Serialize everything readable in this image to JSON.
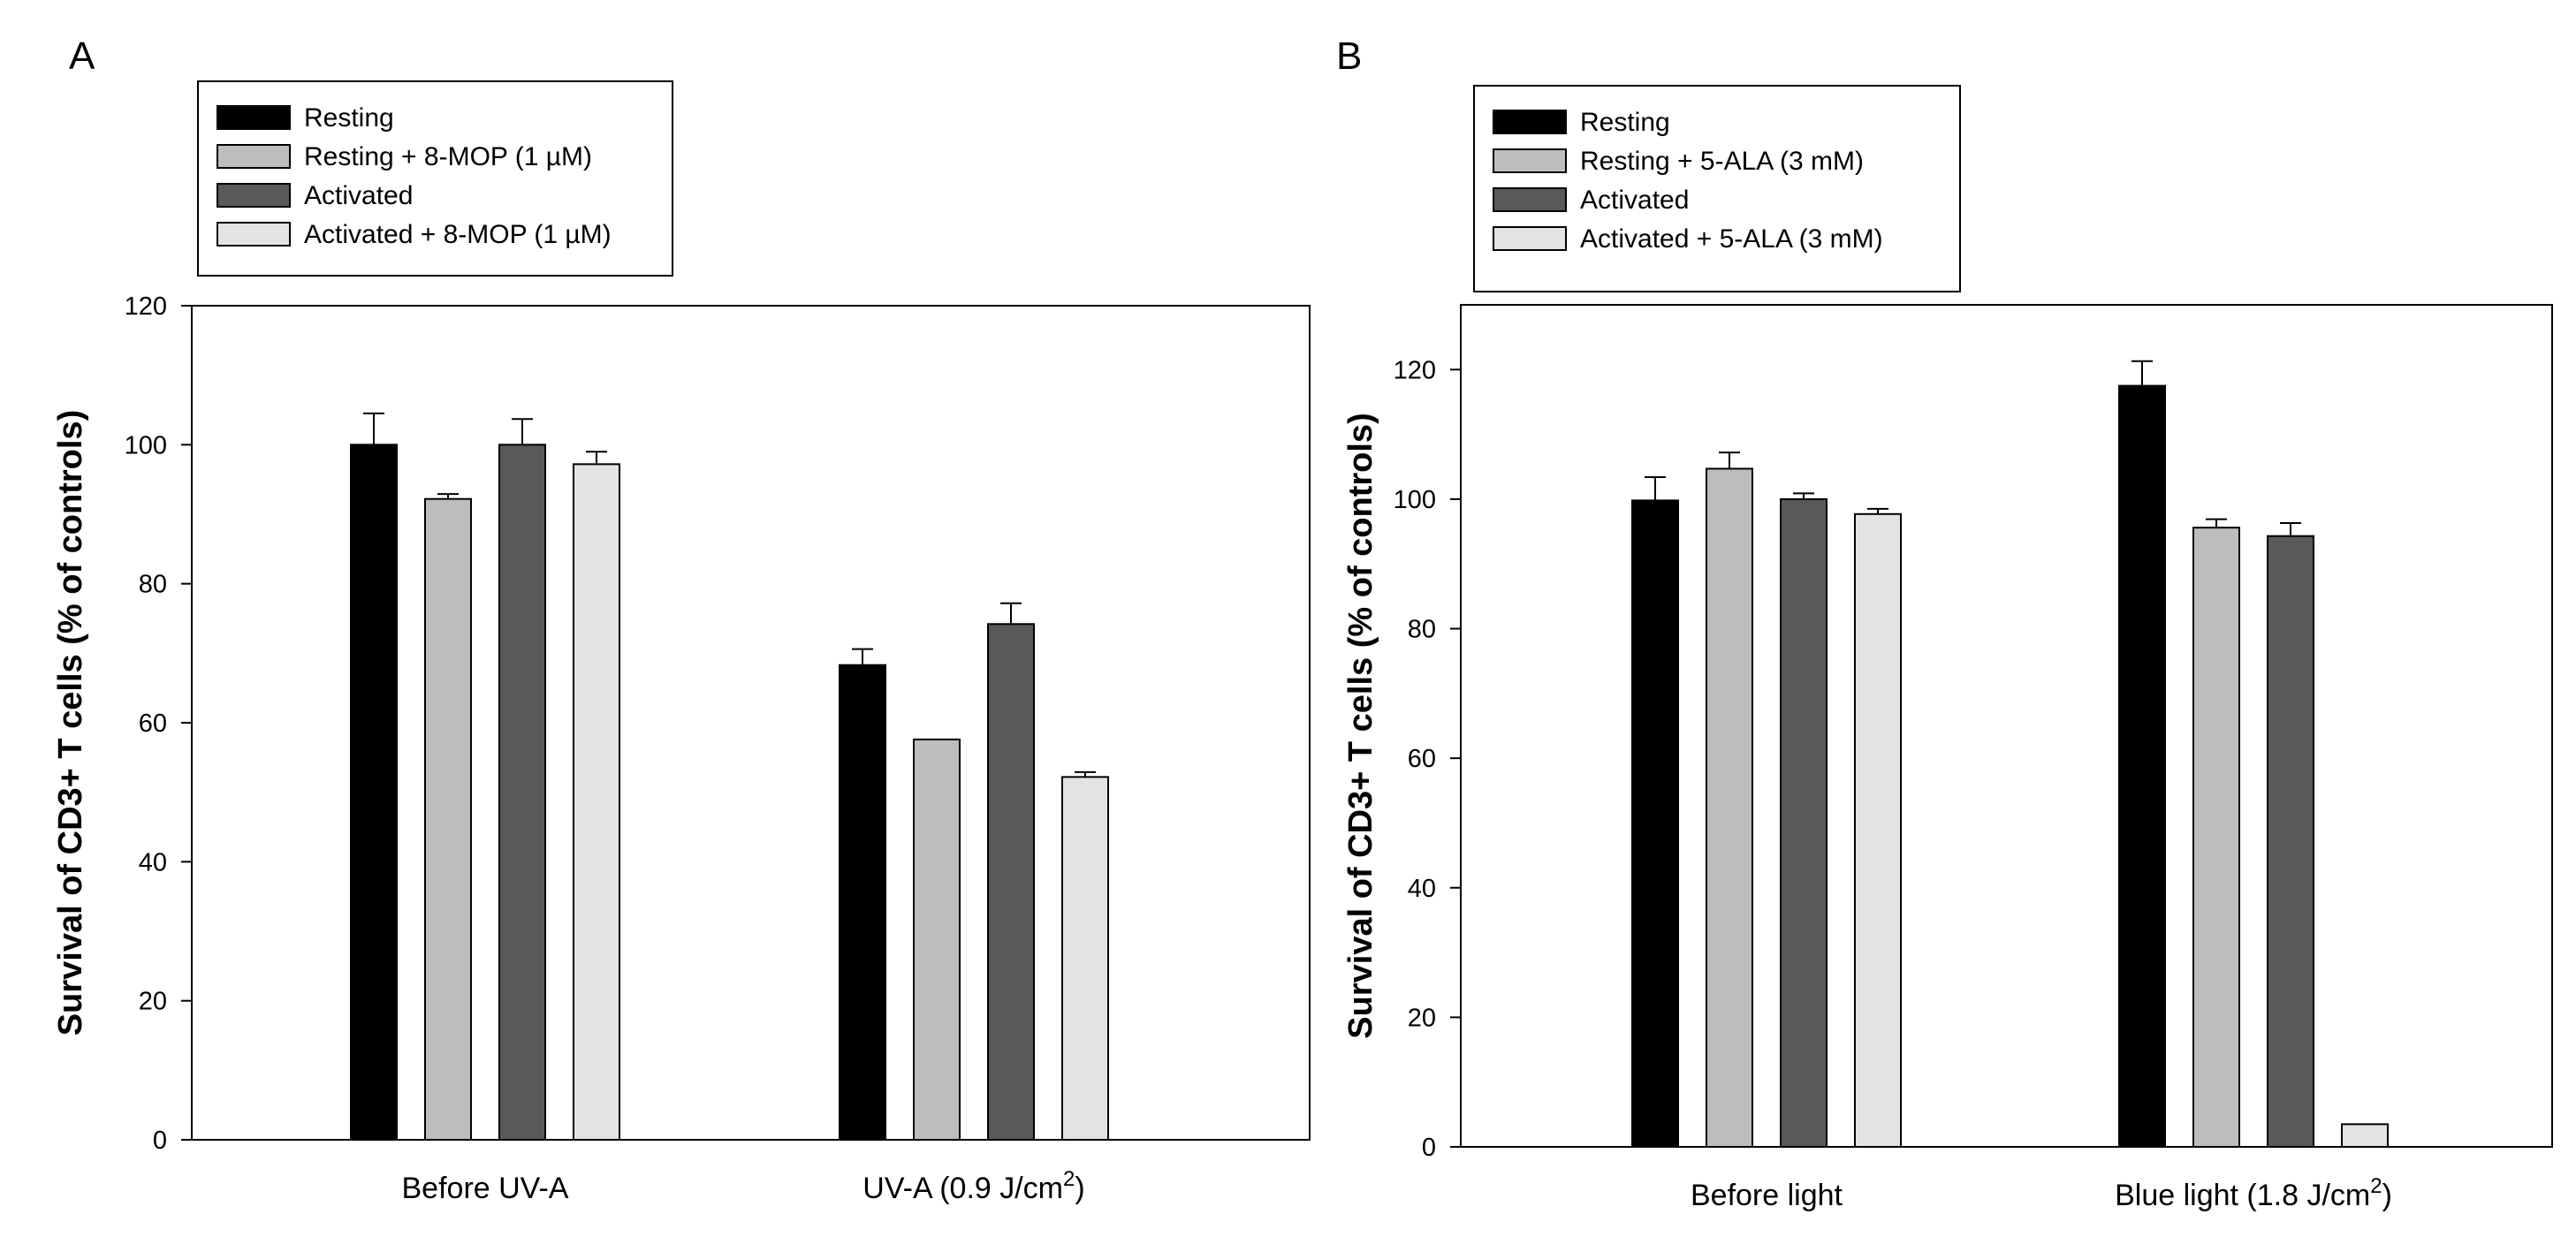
{
  "chart_data": [
    {
      "panel_label": "A",
      "type": "bar",
      "ylabel": "Survival of CD3+ T cells (%  of controls)",
      "ylim": [
        0,
        120
      ],
      "yticks": [
        0,
        20,
        40,
        60,
        80,
        100,
        120
      ],
      "categories": [
        {
          "text": "Before UV-A",
          "sup": "",
          "after": ""
        },
        {
          "text": "UV-A (0.9 J/cm",
          "sup": "2",
          "after": ")"
        }
      ],
      "series": [
        {
          "name": "Resting",
          "color": "#000000",
          "values": [
            100,
            68.3
          ],
          "errors": [
            4.5,
            2.3
          ]
        },
        {
          "name": "Resting + 8-MOP (1 µM)",
          "color": "#bdbdbd",
          "values": [
            92.2,
            57.6
          ],
          "errors": [
            0.7,
            0
          ]
        },
        {
          "name": "Activated",
          "color": "#595959",
          "values": [
            100,
            74.2
          ],
          "errors": [
            3.7,
            3.0
          ]
        },
        {
          "name": "Activated + 8-MOP (1 µM)",
          "color": "#e3e3e3",
          "values": [
            97.2,
            52.2
          ],
          "errors": [
            1.8,
            0.7
          ]
        }
      ],
      "legend": "top-left, outside plot"
    },
    {
      "panel_label": "B",
      "type": "bar",
      "ylabel": "Survival of CD3+ T cells (%  of controls)",
      "ylim": [
        0,
        130
      ],
      "yticks": [
        0,
        20,
        40,
        60,
        80,
        100,
        120
      ],
      "categories": [
        {
          "text": "Before light",
          "sup": "",
          "after": ""
        },
        {
          "text": "Blue light (1.8 J/cm",
          "sup": "2",
          "after": ")"
        }
      ],
      "series": [
        {
          "name": "Resting",
          "color": "#000000",
          "values": [
            99.8,
            117.5
          ],
          "errors": [
            3.6,
            3.8
          ]
        },
        {
          "name": "Resting + 5-ALA (3 mM)",
          "color": "#bdbdbd",
          "values": [
            104.7,
            95.6
          ],
          "errors": [
            2.5,
            1.3
          ]
        },
        {
          "name": "Activated",
          "color": "#595959",
          "values": [
            100,
            94.3
          ],
          "errors": [
            0.9,
            2.0
          ]
        },
        {
          "name": "Activated + 5-ALA (3 mM)",
          "color": "#e3e3e3",
          "values": [
            97.7,
            3.5
          ],
          "errors": [
            0.8,
            0
          ]
        }
      ],
      "legend": "top-left, outside plot"
    }
  ]
}
